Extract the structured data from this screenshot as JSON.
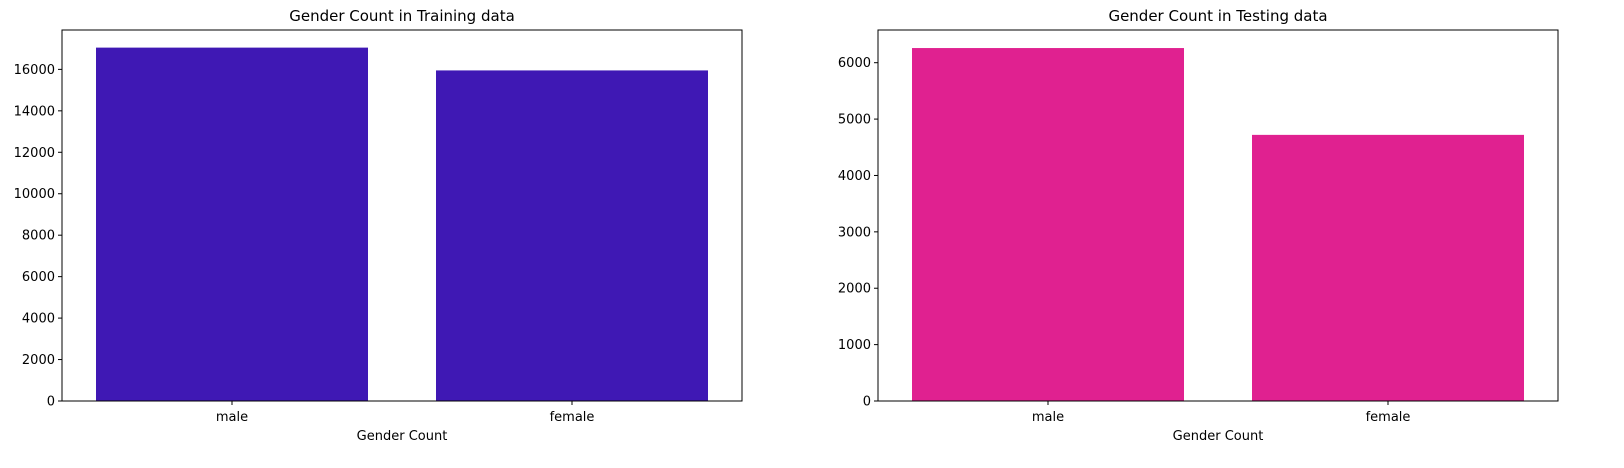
{
  "chart_data": [
    {
      "type": "bar",
      "title": "Gender Count in Training data",
      "xlabel": "Gender Count",
      "ylabel": "",
      "categories": [
        "male",
        "female"
      ],
      "values": [
        17050,
        15950
      ],
      "ylim": [
        0,
        17900
      ],
      "yticks": [
        0,
        2000,
        4000,
        6000,
        8000,
        10000,
        12000,
        14000,
        16000
      ],
      "color": "#3f18b4",
      "grid": false
    },
    {
      "type": "bar",
      "title": "Gender Count in Testing data",
      "xlabel": "Gender Count",
      "ylabel": "",
      "categories": [
        "male",
        "female"
      ],
      "values": [
        6260,
        4720
      ],
      "ylim": [
        0,
        6580
      ],
      "yticks": [
        0,
        1000,
        2000,
        3000,
        4000,
        5000,
        6000
      ],
      "color": "#e02190",
      "grid": false
    }
  ]
}
